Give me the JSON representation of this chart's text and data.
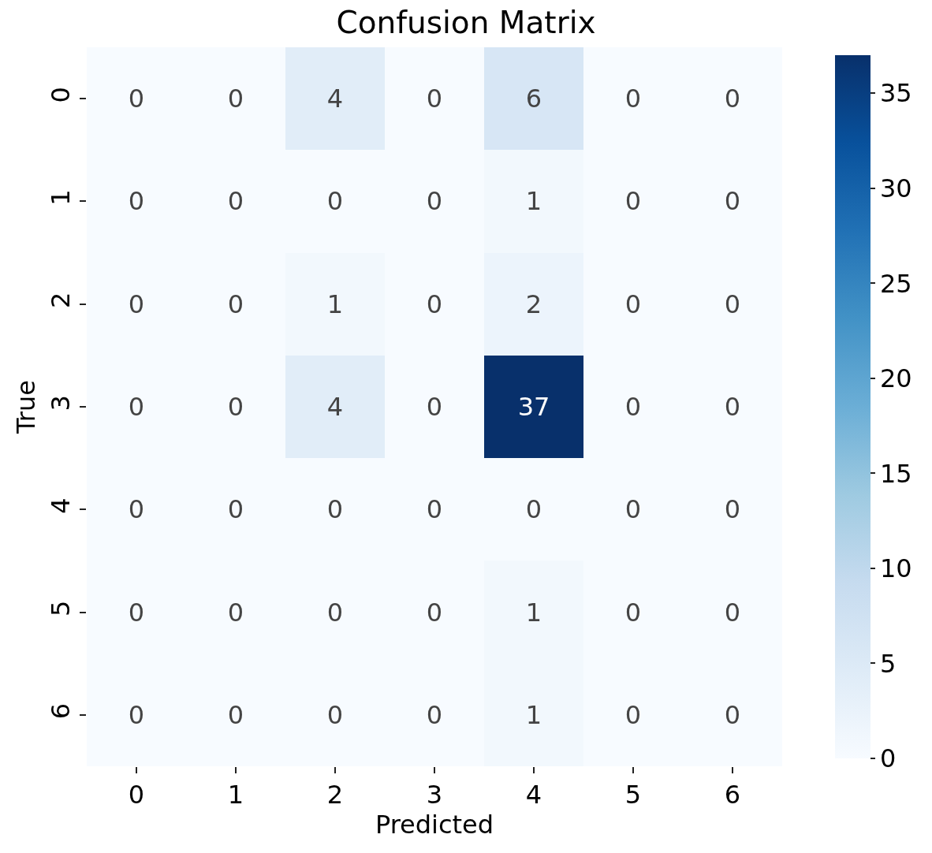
{
  "chart_data": {
    "type": "heatmap",
    "title": "Confusion Matrix",
    "xlabel": "Predicted",
    "ylabel": "True",
    "categories": [
      "0",
      "1",
      "2",
      "3",
      "4",
      "5",
      "6"
    ],
    "y_categories": [
      "0",
      "1",
      "2",
      "3",
      "4",
      "5",
      "6"
    ],
    "cells": [
      [
        0,
        0,
        4,
        0,
        6,
        0,
        0
      ],
      [
        0,
        0,
        0,
        0,
        1,
        0,
        0
      ],
      [
        0,
        0,
        1,
        0,
        2,
        0,
        0
      ],
      [
        0,
        0,
        4,
        0,
        37,
        0,
        0
      ],
      [
        0,
        0,
        0,
        0,
        0,
        0,
        0
      ],
      [
        0,
        0,
        0,
        0,
        1,
        0,
        0
      ],
      [
        0,
        0,
        0,
        0,
        1,
        0,
        0
      ]
    ],
    "clim": [
      0,
      37
    ],
    "cticks": [
      0,
      5,
      10,
      15,
      20,
      25,
      30,
      35
    ],
    "data_labels": true
  }
}
